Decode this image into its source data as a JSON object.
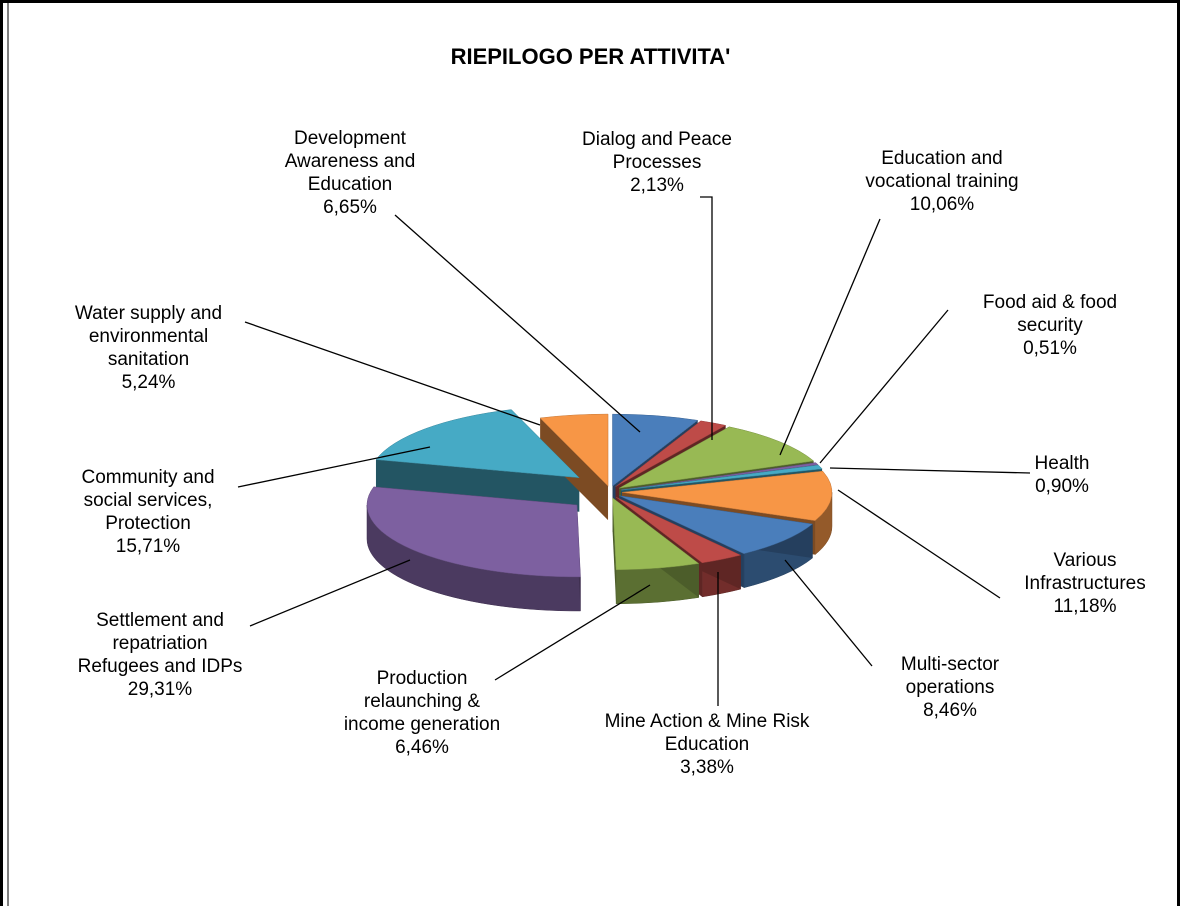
{
  "chart_data": {
    "type": "pie",
    "title": "RIEPILOGO PER ATTIVITA'",
    "categories": [
      "Development Awareness and Education",
      "Dialog and Peace Processes",
      "Education and vocational training",
      "Food aid & food security",
      "Health",
      "Various Infrastructures",
      "Multi-sector operations",
      "Mine Action & Mine Risk Education",
      "Production relaunching & income generation",
      "Settlement and repatriation Refugees and IDPs",
      "Community and social services, Protection",
      "Water supply and environmental sanitation"
    ],
    "values": [
      6.65,
      2.13,
      10.06,
      0.51,
      0.9,
      11.18,
      8.46,
      3.38,
      6.46,
      29.31,
      15.71,
      5.24
    ],
    "value_labels": [
      "6,65%",
      "2,13%",
      "10,06%",
      "0,51%",
      "0,90%",
      "11,18%",
      "8,46%",
      "3,38%",
      "6,46%",
      "29,31%",
      "15,71%",
      "5,24%"
    ],
    "colors": [
      "#4a7ebb",
      "#be4b48",
      "#98b954",
      "#7d60a0",
      "#46aac5",
      "#f79646",
      "#4a7ebb",
      "#be4b48",
      "#98b954",
      "#7d60a0",
      "#46aac5",
      "#f79646"
    ]
  }
}
